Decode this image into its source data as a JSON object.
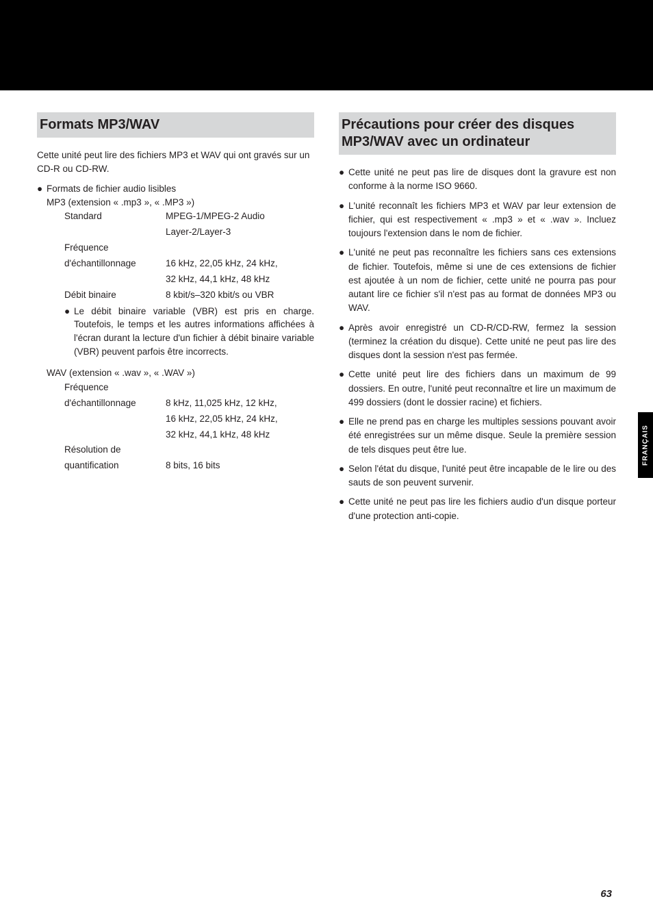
{
  "left": {
    "heading": "Formats MP3/WAV",
    "intro": "Cette unité peut lire des fichiers MP3 et WAV qui ont gravés sur un CD-R ou CD-RW.",
    "formats_label": "Formats de fichier audio lisibles",
    "mp3": {
      "title": "MP3 (extension « .mp3 », « .MP3 »)",
      "rows": [
        {
          "label": "Standard",
          "value": "MPEG-1/MPEG-2 Audio"
        },
        {
          "label": "",
          "value": "Layer-2/Layer-3"
        },
        {
          "label": "Fréquence",
          "value": ""
        },
        {
          "label": "d'échantillonnage",
          "value": "16 kHz, 22,05 kHz, 24 kHz,"
        },
        {
          "label": "",
          "value": "32 kHz, 44,1 kHz, 48 kHz"
        },
        {
          "label": "Débit binaire",
          "value": "8 kbit/s–320 kbit/s ou VBR"
        }
      ],
      "note": "Le débit binaire variable (VBR) est pris en charge. Toutefois, le temps et les autres informations affichées à l'écran durant la lecture d'un fichier à débit binaire variable (VBR) peuvent parfois être incorrects."
    },
    "wav": {
      "title": "WAV (extension « .wav », « .WAV »)",
      "rows": [
        {
          "label": "Fréquence",
          "value": ""
        },
        {
          "label": "d'échantillonnage",
          "value": "8 kHz, 11,025 kHz, 12 kHz,"
        },
        {
          "label": "",
          "value": "16 kHz, 22,05 kHz, 24 kHz,"
        },
        {
          "label": "",
          "value": "32 kHz, 44,1 kHz, 48 kHz"
        },
        {
          "label": "Résolution de",
          "value": ""
        },
        {
          "label": "quantification",
          "value": "8 bits, 16 bits"
        }
      ]
    }
  },
  "right": {
    "heading": "Précautions pour créer des disques MP3/WAV avec un ordinateur",
    "items": [
      "Cette unité ne peut pas lire de disques dont la gravure est non conforme à la norme ISO 9660.",
      "L'unité reconnaît les fichiers MP3 et WAV par leur extension de fichier, qui est respectivement « .mp3 » et « .wav ». Incluez toujours l'extension dans le nom de fichier.",
      "L'unité ne peut pas reconnaître les fichiers sans ces extensions de fichier. Toutefois, même si une de ces extensions de fichier est ajoutée à un nom de fichier, cette unité ne pourra pas pour autant lire ce fichier s'il n'est pas au format de données MP3 ou WAV.",
      "Après avoir enregistré un CD-R/CD-RW, fermez la session (terminez la création du disque). Cette unité ne peut pas lire des disques dont la session n'est pas fermée.",
      "Cette unité peut lire des fichiers dans un maximum de 99 dossiers. En outre, l'unité peut reconnaître et lire un maximum de 499 dossiers (dont le dossier racine) et fichiers.",
      "Elle ne prend pas en charge les multiples sessions pouvant avoir été enregistrées sur un même disque. Seule la première session de tels disques peut être lue.",
      "Selon l'état du disque, l'unité peut être incapable de le lire ou des sauts de son peuvent survenir.",
      "Cette unité ne peut pas lire les fichiers audio d'un disque porteur d'une protection anti-copie."
    ]
  },
  "side_tab": "FRANÇAIS",
  "page_number": "63",
  "colors": {
    "black": "#000000",
    "heading_bg": "#d6d7d8",
    "text": "#231f20",
    "page_bg": "#ffffff"
  }
}
